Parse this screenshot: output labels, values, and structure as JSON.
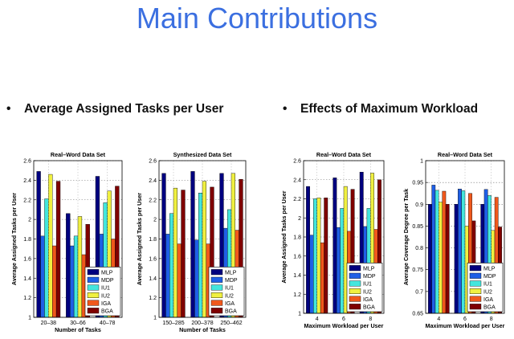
{
  "slide": {
    "title": "Main Contributions",
    "bullets": [
      {
        "marker": "•",
        "text": "Average Assigned Tasks per User"
      },
      {
        "marker": "•",
        "text": "Effects of Maximum Workload"
      }
    ]
  },
  "colors": {
    "MLP": "#00007f",
    "MDP": "#1f5fe6",
    "IU1": "#43e6dd",
    "IU2": "#f0f040",
    "IGA": "#f0581c",
    "BGA": "#7f0000"
  },
  "chart_data": [
    {
      "type": "bar",
      "title": "Real–Word Data Set",
      "xlabel": "Number of Tasks",
      "ylabel": "Average Assigned Tasks per User",
      "categories": [
        "20–38",
        "30–66",
        "40–78"
      ],
      "ylim": [
        1,
        2.6
      ],
      "yticks": [
        "1",
        "1.2",
        "1.4",
        "1.6",
        "1.8",
        "2",
        "2.2",
        "2.4",
        "2.6"
      ],
      "grid": true,
      "legend": "bottom-right",
      "series": [
        {
          "name": "MLP",
          "values": [
            2.49,
            2.06,
            2.44
          ]
        },
        {
          "name": "MDP",
          "values": [
            1.83,
            1.73,
            1.85
          ]
        },
        {
          "name": "IU1",
          "values": [
            2.21,
            1.83,
            2.17
          ]
        },
        {
          "name": "IU2",
          "values": [
            2.46,
            2.03,
            2.29
          ]
        },
        {
          "name": "IGA",
          "values": [
            1.73,
            1.64,
            1.8
          ]
        },
        {
          "name": "BGA",
          "values": [
            2.39,
            1.95,
            2.34
          ]
        }
      ]
    },
    {
      "type": "bar",
      "title": "Synthesized Data Set",
      "xlabel": "Number of Tasks",
      "ylabel": "Average Assigned Tasks per User",
      "categories": [
        "150–285",
        "200–378",
        "250–462"
      ],
      "ylim": [
        1,
        2.6
      ],
      "yticks": [
        "1",
        "1.2",
        "1.4",
        "1.6",
        "1.8",
        "2",
        "2.2",
        "2.4",
        "2.6"
      ],
      "grid": true,
      "legend": "bottom-right",
      "series": [
        {
          "name": "MLP",
          "values": [
            2.47,
            2.49,
            2.47
          ]
        },
        {
          "name": "MDP",
          "values": [
            1.85,
            1.79,
            1.91
          ]
        },
        {
          "name": "IU1",
          "values": [
            2.06,
            2.27,
            2.1
          ]
        },
        {
          "name": "IU2",
          "values": [
            2.32,
            2.39,
            2.47
          ]
        },
        {
          "name": "IGA",
          "values": [
            1.75,
            1.75,
            1.89
          ]
        },
        {
          "name": "BGA",
          "values": [
            2.3,
            2.33,
            2.41
          ]
        }
      ]
    },
    {
      "type": "bar",
      "title": "Real–Word Data Set",
      "xlabel": "Maximum Workload per User",
      "ylabel": "Average Assigned Tasks per User",
      "categories": [
        "4",
        "6",
        "8"
      ],
      "ylim": [
        1,
        2.6
      ],
      "yticks": [
        "1",
        "1.2",
        "1.4",
        "1.6",
        "1.8",
        "2",
        "2.2",
        "2.4",
        "2.6"
      ],
      "grid": true,
      "legend": "bottom-right",
      "series": [
        {
          "name": "MLP",
          "values": [
            2.33,
            2.42,
            2.48
          ]
        },
        {
          "name": "MDP",
          "values": [
            1.82,
            1.9,
            1.91
          ]
        },
        {
          "name": "IU1",
          "values": [
            2.2,
            2.1,
            2.1
          ]
        },
        {
          "name": "IU2",
          "values": [
            2.21,
            2.33,
            2.47
          ]
        },
        {
          "name": "IGA",
          "values": [
            1.74,
            1.86,
            1.88
          ]
        },
        {
          "name": "BGA",
          "values": [
            2.21,
            2.3,
            2.4
          ]
        }
      ]
    },
    {
      "type": "bar",
      "title": "Real–Word Data Set",
      "xlabel": "Maximum Workload per User",
      "ylabel": "Average Coverage Degree per Task",
      "categories": [
        "4",
        "6",
        "8"
      ],
      "ylim": [
        0.65,
        1
      ],
      "yticks": [
        "0.65",
        "0.7",
        "0.75",
        "0.8",
        "0.85",
        "0.9",
        "0.95",
        "1"
      ],
      "grid": true,
      "legend": "bottom-right",
      "series": [
        {
          "name": "MLP",
          "values": [
            0.9,
            0.9,
            0.9
          ]
        },
        {
          "name": "MDP",
          "values": [
            0.944,
            0.935,
            0.934
          ]
        },
        {
          "name": "IU1",
          "values": [
            0.932,
            0.931,
            0.92
          ]
        },
        {
          "name": "IU2",
          "values": [
            0.905,
            0.85,
            0.84
          ]
        },
        {
          "name": "IGA",
          "values": [
            0.93,
            0.925,
            0.916
          ]
        },
        {
          "name": "BGA",
          "values": [
            0.9,
            0.862,
            0.848
          ]
        }
      ]
    }
  ]
}
